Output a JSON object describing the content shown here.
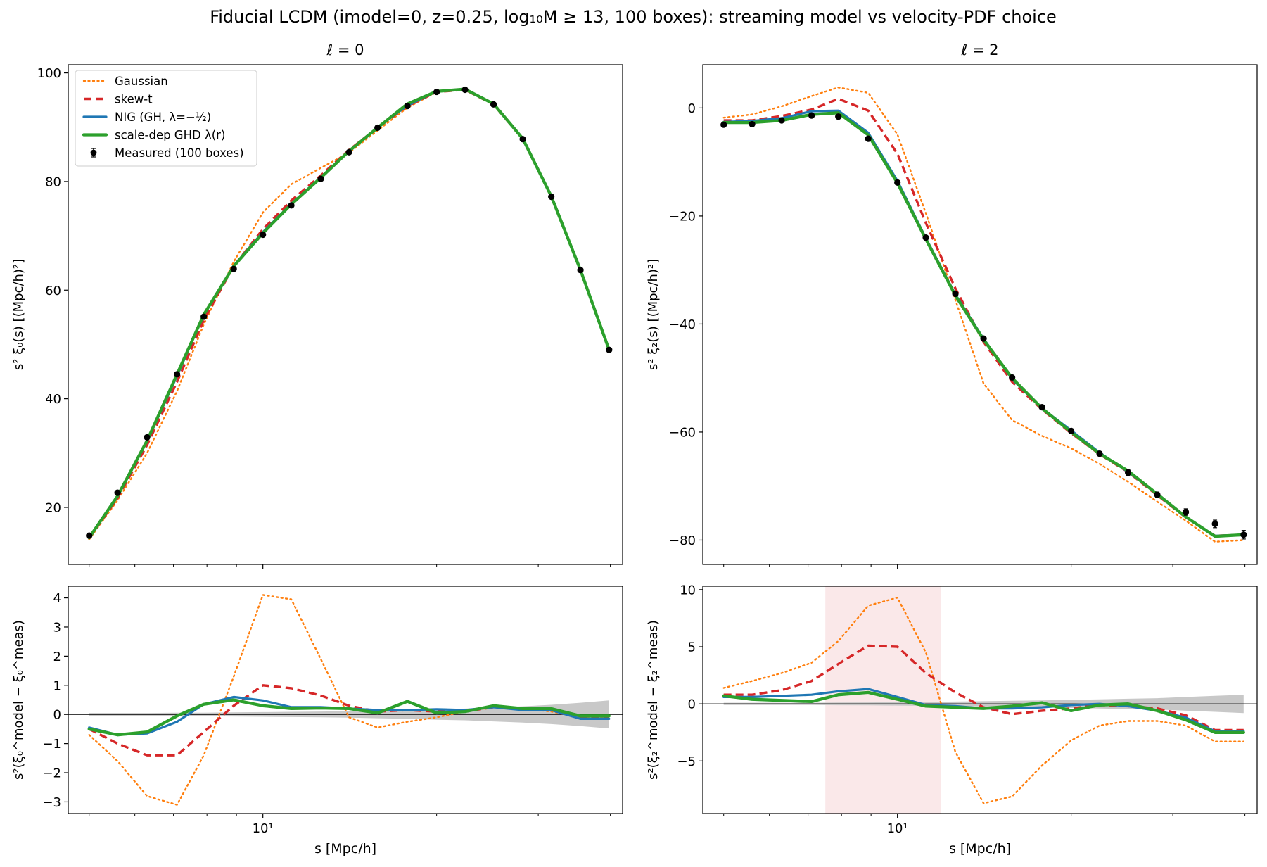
{
  "figure": {
    "title": "Fiducial LCDM (imodel=0, z=0.25, log₁₀M ≥ 13, 100 boxes): streaming model vs velocity-PDF choice"
  },
  "legend": {
    "entries": [
      {
        "key": "gaussian",
        "label": "Gaussian"
      },
      {
        "key": "skewt",
        "label": "skew-t"
      },
      {
        "key": "nig",
        "label": "NIG (GH, λ=−½)"
      },
      {
        "key": "ghd",
        "label": "scale-dep GHD λ(r)"
      },
      {
        "key": "measured",
        "label": "Measured (100 boxes)"
      }
    ]
  },
  "colors": {
    "gaussian": "#ff7f0e",
    "skewt": "#d62728",
    "nig": "#1f77b4",
    "ghd": "#2ca02c",
    "measured": "#000000",
    "error_band": "#c8c8c8",
    "highlight": "#f7d9da"
  },
  "chart_data": [
    {
      "id": "top_l0",
      "type": "line",
      "title": "ℓ = 0",
      "xlabel": "",
      "ylabel": "s² ξ₀(s)  [(Mpc/h)²]",
      "xscale": "log",
      "xlim": [
        4.6,
        42
      ],
      "ylim": [
        9.5,
        101.5
      ],
      "yticks": [
        20,
        40,
        60,
        80,
        100
      ],
      "xticks": [
        10
      ],
      "xtick_labels": [
        "10¹"
      ],
      "show_xtick_labels": false,
      "grid": false,
      "legend_position": "upper-left",
      "x": [
        5.0,
        5.6,
        6.3,
        7.1,
        7.9,
        8.9,
        10.0,
        11.2,
        12.6,
        14.1,
        15.8,
        17.8,
        20.0,
        22.4,
        25.1,
        28.2,
        31.6,
        35.5,
        39.8
      ],
      "measured": {
        "name": "Measured (100 boxes)",
        "values": [
          14.8,
          22.7,
          32.9,
          44.5,
          55.1,
          63.9,
          70.2,
          75.6,
          80.5,
          85.4,
          89.9,
          93.9,
          96.5,
          96.9,
          94.2,
          87.8,
          77.2,
          63.7,
          49.0
        ],
        "errors": [
          0.2,
          0.2,
          0.2,
          0.2,
          0.2,
          0.2,
          0.2,
          0.2,
          0.2,
          0.2,
          0.2,
          0.2,
          0.2,
          0.2,
          0.3,
          0.3,
          0.3,
          0.4,
          0.4
        ]
      },
      "series": [
        {
          "key": "gaussian",
          "name": "Gaussian",
          "style": "dotted",
          "values": [
            14.1,
            21.3,
            30.0,
            41.4,
            53.7,
            65.2,
            74.3,
            79.5,
            82.5,
            85.3,
            89.4,
            93.6,
            96.5,
            96.9,
            94.2,
            87.8,
            77.2,
            63.7,
            49.0
          ]
        },
        {
          "key": "skewt",
          "name": "skew-t",
          "style": "dashed",
          "values": [
            14.3,
            21.7,
            31.5,
            43.1,
            54.5,
            64.4,
            71.2,
            76.5,
            81.1,
            85.8,
            89.9,
            93.9,
            96.5,
            96.9,
            94.2,
            87.8,
            77.2,
            63.7,
            49.0
          ]
        },
        {
          "key": "nig",
          "name": "NIG (GH, λ=−½)",
          "style": "solid",
          "values": [
            14.4,
            22.0,
            32.2,
            44.2,
            55.5,
            64.5,
            70.7,
            75.9,
            80.8,
            85.6,
            90.0,
            94.0,
            96.6,
            97.0,
            94.3,
            87.9,
            77.3,
            63.8,
            49.1
          ]
        },
        {
          "key": "ghd",
          "name": "scale-dep GHD λ(r)",
          "style": "solid-thick",
          "values": [
            14.4,
            22.1,
            32.3,
            44.5,
            55.5,
            64.4,
            70.5,
            75.8,
            80.7,
            85.6,
            89.9,
            94.3,
            96.6,
            97.0,
            94.3,
            87.9,
            77.3,
            63.7,
            49.0
          ]
        }
      ]
    },
    {
      "id": "top_l2",
      "type": "line",
      "title": "ℓ = 2",
      "xlabel": "",
      "ylabel": "s² ξ₂(s)  [(Mpc/h)²]",
      "xscale": "log",
      "xlim": [
        4.6,
        42
      ],
      "ylim": [
        -84.5,
        8.0
      ],
      "yticks": [
        -80,
        -60,
        -40,
        -20,
        0
      ],
      "xticks": [
        10
      ],
      "xtick_labels": [
        "10¹"
      ],
      "show_xtick_labels": false,
      "grid": false,
      "x": [
        5.0,
        5.6,
        6.3,
        7.1,
        7.9,
        8.9,
        10.0,
        11.2,
        12.6,
        14.1,
        15.8,
        17.8,
        20.0,
        22.4,
        25.1,
        28.2,
        31.6,
        35.5,
        39.8
      ],
      "measured": {
        "name": "Measured (100 boxes)",
        "values": [
          -3.1,
          -3.0,
          -2.3,
          -1.4,
          -1.6,
          -5.7,
          -13.8,
          -24.0,
          -34.4,
          -42.7,
          -49.9,
          -55.4,
          -59.8,
          -64.0,
          -67.5,
          -71.6,
          -74.8,
          -77.0,
          -79.0
        ],
        "errors": [
          0.2,
          0.2,
          0.2,
          0.2,
          0.3,
          0.3,
          0.3,
          0.3,
          0.3,
          0.3,
          0.4,
          0.4,
          0.4,
          0.4,
          0.5,
          0.5,
          0.6,
          0.7,
          0.8
        ]
      },
      "series": [
        {
          "key": "gaussian",
          "name": "Gaussian",
          "style": "dotted",
          "values": [
            -1.8,
            -1.2,
            0.3,
            2.2,
            3.8,
            2.8,
            -4.9,
            -19.5,
            -35.5,
            -51.0,
            -57.8,
            -60.7,
            -63.0,
            -65.9,
            -69.2,
            -72.9,
            -76.4,
            -80.3,
            -80.0
          ]
        },
        {
          "key": "skewt",
          "name": "skew-t",
          "style": "dashed",
          "values": [
            -2.3,
            -2.3,
            -1.5,
            -0.3,
            1.7,
            -0.5,
            -8.5,
            -21.3,
            -33.4,
            -43.3,
            -50.7,
            -55.8,
            -60.2,
            -64.1,
            -67.4,
            -71.7,
            -75.8,
            -79.2,
            -79.0
          ]
        },
        {
          "key": "nig",
          "name": "NIG (GH, λ=−½)",
          "style": "solid",
          "values": [
            -2.6,
            -2.4,
            -1.9,
            -0.6,
            -0.5,
            -4.6,
            -13.5,
            -24.1,
            -34.5,
            -42.7,
            -50.2,
            -55.6,
            -59.7,
            -63.8,
            -67.4,
            -71.4,
            -75.8,
            -79.2,
            -79.0
          ]
        },
        {
          "key": "ghd",
          "name": "scale-dep GHD λ(r)",
          "style": "solid-thick",
          "values": [
            -2.7,
            -2.7,
            -2.3,
            -1.2,
            -0.9,
            -5.0,
            -13.9,
            -24.3,
            -34.7,
            -42.9,
            -50.0,
            -55.6,
            -60.0,
            -64.0,
            -67.2,
            -71.5,
            -75.7,
            -79.3,
            -79.0
          ]
        }
      ]
    },
    {
      "id": "bottom_l0",
      "type": "line",
      "xlabel": "s [Mpc/h]",
      "ylabel": "s²(ξ₀^model − ξ₀^meas)",
      "xscale": "log",
      "xlim": [
        4.6,
        42
      ],
      "ylim": [
        -3.4,
        4.4
      ],
      "yticks": [
        -3,
        -2,
        -1,
        0,
        1,
        2,
        3,
        4
      ],
      "xticks": [
        10
      ],
      "xtick_labels": [
        "10¹"
      ],
      "show_xtick_labels": true,
      "zero_line": true,
      "grid": false,
      "x": [
        5.0,
        5.6,
        6.3,
        7.1,
        7.9,
        8.9,
        10.0,
        11.2,
        12.6,
        14.1,
        15.8,
        17.8,
        20.0,
        22.4,
        25.1,
        28.2,
        31.6,
        35.5,
        39.8
      ],
      "error_band": {
        "values": [
          0.05,
          0.05,
          0.05,
          0.06,
          0.06,
          0.07,
          0.08,
          0.09,
          0.1,
          0.11,
          0.13,
          0.15,
          0.18,
          0.2,
          0.24,
          0.28,
          0.33,
          0.4,
          0.48
        ]
      },
      "series": [
        {
          "key": "gaussian",
          "name": "Gaussian",
          "style": "dotted",
          "values": [
            -0.7,
            -1.6,
            -2.8,
            -3.1,
            -1.4,
            1.3,
            4.1,
            3.95,
            1.9,
            -0.1,
            -0.45,
            -0.25,
            -0.1,
            0.1,
            0.25,
            0.2,
            0.1,
            -0.1,
            -0.1
          ]
        },
        {
          "key": "skewt",
          "name": "skew-t",
          "style": "dashed",
          "values": [
            -0.5,
            -1.0,
            -1.4,
            -1.4,
            -0.6,
            0.3,
            1.0,
            0.9,
            0.65,
            0.3,
            0.1,
            0.15,
            0.1,
            0.1,
            0.25,
            0.2,
            0.2,
            -0.1,
            -0.1
          ]
        },
        {
          "key": "nig",
          "name": "NIG (GH, λ=−½)",
          "style": "solid",
          "values": [
            -0.45,
            -0.7,
            -0.65,
            -0.25,
            0.35,
            0.6,
            0.48,
            0.25,
            0.25,
            0.2,
            0.15,
            0.15,
            0.18,
            0.15,
            0.25,
            0.15,
            0.15,
            -0.15,
            -0.15
          ]
        },
        {
          "key": "ghd",
          "name": "scale-dep GHD λ(r)",
          "style": "solid-thick",
          "values": [
            -0.5,
            -0.7,
            -0.6,
            -0.05,
            0.35,
            0.5,
            0.3,
            0.2,
            0.22,
            0.2,
            0.05,
            0.45,
            0.05,
            0.1,
            0.3,
            0.2,
            0.2,
            -0.05,
            -0.05
          ]
        }
      ]
    },
    {
      "id": "bottom_l2",
      "type": "line",
      "xlabel": "s [Mpc/h]",
      "ylabel": "s²(ξ₂^model − ξ₂^meas)",
      "xscale": "log",
      "xlim": [
        4.6,
        42
      ],
      "ylim": [
        -9.6,
        10.3
      ],
      "yticks": [
        -5,
        0,
        5,
        10
      ],
      "xticks": [
        10
      ],
      "xtick_labels": [
        "10¹"
      ],
      "show_xtick_labels": true,
      "zero_line": true,
      "highlight_x_range": [
        7.5,
        11.9
      ],
      "grid": false,
      "x": [
        5.0,
        5.6,
        6.3,
        7.1,
        7.9,
        8.9,
        10.0,
        11.2,
        12.6,
        14.1,
        15.8,
        17.8,
        20.0,
        22.4,
        25.1,
        28.2,
        31.6,
        35.5,
        39.8
      ],
      "error_band": {
        "values": [
          0.1,
          0.1,
          0.1,
          0.1,
          0.12,
          0.13,
          0.15,
          0.17,
          0.2,
          0.23,
          0.27,
          0.3,
          0.35,
          0.4,
          0.45,
          0.5,
          0.6,
          0.7,
          0.8
        ]
      },
      "series": [
        {
          "key": "gaussian",
          "name": "Gaussian",
          "style": "dotted",
          "values": [
            1.4,
            2.0,
            2.7,
            3.6,
            5.5,
            8.6,
            9.3,
            4.5,
            -4.2,
            -8.7,
            -8.1,
            -5.4,
            -3.2,
            -1.9,
            -1.5,
            -1.5,
            -1.9,
            -3.3,
            -3.3
          ]
        },
        {
          "key": "skewt",
          "name": "skew-t",
          "style": "dashed",
          "values": [
            0.8,
            0.8,
            1.2,
            2.0,
            3.5,
            5.1,
            5.0,
            2.7,
            1.0,
            -0.3,
            -0.9,
            -0.6,
            -0.4,
            -0.1,
            -0.2,
            -0.4,
            -1.0,
            -2.3,
            -2.3
          ]
        },
        {
          "key": "nig",
          "name": "NIG (GH, λ=−½)",
          "style": "solid",
          "values": [
            0.6,
            0.6,
            0.7,
            0.8,
            1.1,
            1.3,
            0.6,
            -0.1,
            -0.2,
            -0.4,
            -0.4,
            -0.3,
            -0.1,
            0.0,
            -0.2,
            -0.6,
            -1.2,
            -2.4,
            -2.4
          ]
        },
        {
          "key": "ghd",
          "name": "scale-dep GHD λ(r)",
          "style": "solid-thick",
          "values": [
            0.7,
            0.4,
            0.3,
            0.2,
            0.8,
            1.0,
            0.4,
            -0.2,
            -0.3,
            -0.4,
            -0.2,
            0.1,
            -0.6,
            -0.1,
            0.0,
            -0.6,
            -1.4,
            -2.5,
            -2.5
          ]
        }
      ]
    }
  ]
}
